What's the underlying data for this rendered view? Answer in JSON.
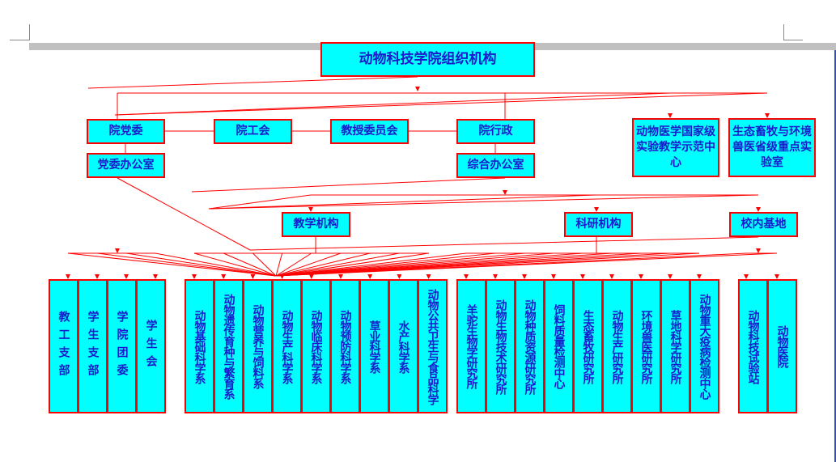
{
  "title": "动物科技学院组织机构",
  "level1": [
    "院党委",
    "院工会",
    "教授委员会",
    "院行政"
  ],
  "labs": [
    "动物医学国家级实验教学示范中心",
    "生态畜牧与环境兽医省级重点实验室"
  ],
  "offices": [
    "党委办公室",
    "综合办公室"
  ],
  "level2": [
    "教学机构",
    "科研机构",
    "校内基地"
  ],
  "party_units": [
    "教工支部",
    "学生支部",
    "学院团委",
    "学生会"
  ],
  "departments": [
    "动物基础科学系",
    "动物遗传育种与繁育系",
    "动物营养与饲料系",
    "动物生产科学系",
    "动物临床科学系",
    "动物预防科学系",
    "草业科学系",
    "水产科学系",
    "动物公共卫生与食品科学"
  ],
  "institutes": [
    "羊驼生物学研究所",
    "动物生物技术研究所",
    "动物种质资源研究所",
    "饲料质量检测中心",
    "生态畜牧研究所",
    "动物生产研究所",
    "环境兽医研究所",
    "草地科学研究所",
    "动物重大疫病检测中心"
  ],
  "bases": [
    "动物科技试验站",
    "动物医院"
  ],
  "colors": {
    "box_fill": "#00ffff",
    "border": "#ff0000",
    "text": "#1a1acc",
    "line": "#ff0000"
  }
}
